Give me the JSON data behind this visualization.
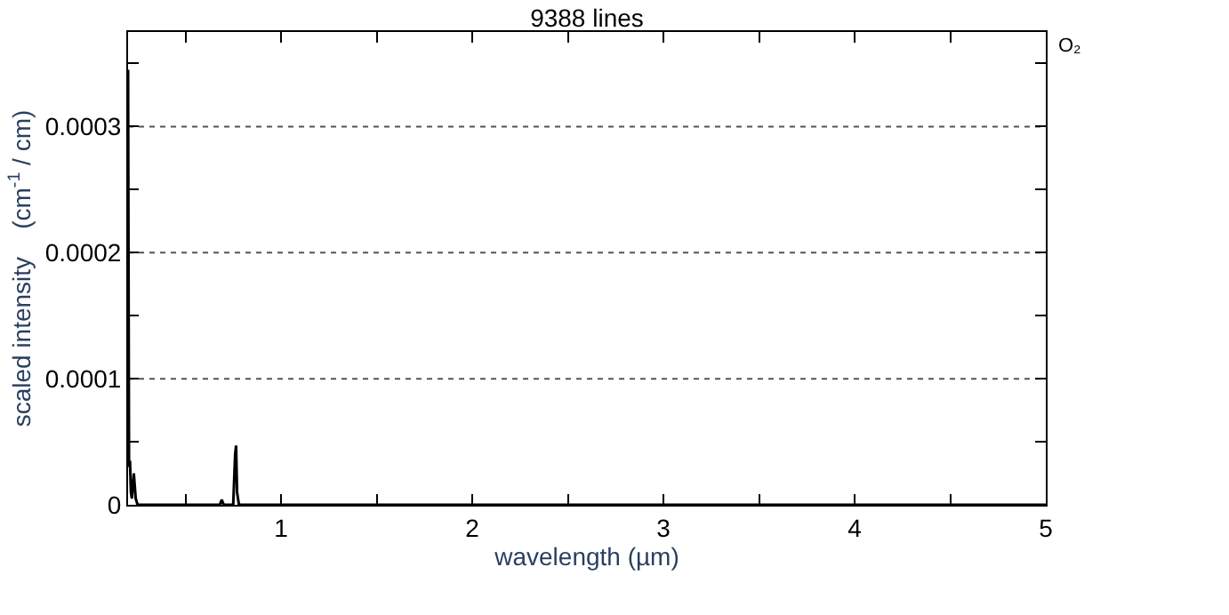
{
  "chart_data": {
    "type": "line",
    "title": "9388 lines",
    "xlabel": "wavelength (µm)",
    "ylabel": "scaled intensity    (cm$^{-1}$ / cm)",
    "annotations": [
      "O₂"
    ],
    "series": [
      {
        "color": "#000000",
        "x": [
          0.2,
          0.205,
          0.21,
          0.215,
          0.22,
          0.23,
          0.24,
          0.25,
          0.68,
          0.69,
          0.7,
          0.75,
          0.76,
          0.765,
          0.77,
          0.78,
          5
        ],
        "values": [
          0.000345,
          3e-05,
          3.5e-05,
          1e-05,
          5e-06,
          2.5e-05,
          5e-06,
          0,
          0,
          4e-06,
          0,
          0,
          4e-05,
          4.7e-05,
          1e-05,
          0,
          0
        ]
      }
    ],
    "xlim": [
      0.2,
      5
    ],
    "ylim": [
      0,
      0.000375
    ],
    "xticks": [
      {
        "value": 0.5,
        "label": null
      },
      1,
      {
        "value": 1.5,
        "label": null
      },
      2,
      {
        "value": 2.5,
        "label": null
      },
      3,
      {
        "value": 3.5,
        "label": null
      },
      4,
      {
        "value": 4.5,
        "label": null
      },
      5
    ],
    "yticks": [
      0,
      {
        "value": 5e-05,
        "label": null
      },
      0.0001,
      {
        "value": 0.00015,
        "label": null
      },
      0.0002,
      {
        "value": 0.00025,
        "label": null
      },
      0.0003,
      {
        "value": 0.00035,
        "label": null
      }
    ],
    "grid": "y",
    "legend": false,
    "line_style": "solid",
    "marker": "none"
  }
}
